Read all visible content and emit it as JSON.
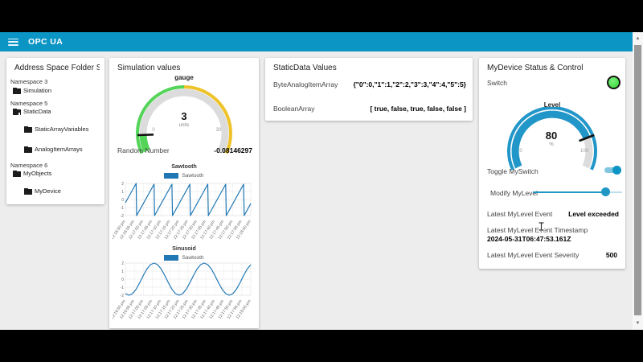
{
  "header": {
    "title": "OPC UA"
  },
  "cards": {
    "address": {
      "title": "Address Space Folder Str...",
      "items": [
        {
          "type": "namespace",
          "label": "Namespace 3"
        },
        {
          "type": "folder",
          "label": "Simulation"
        },
        {
          "type": "namespace",
          "label": "Namespace 5"
        },
        {
          "type": "folder-open",
          "label": "StaticData"
        },
        {
          "type": "folder",
          "label": "StaticArrayVariables"
        },
        {
          "type": "folder",
          "label": "AnalogItemArrays"
        },
        {
          "type": "namespace",
          "label": "Namespace 6"
        },
        {
          "type": "folder",
          "label": "MyObjects"
        },
        {
          "type": "folder",
          "label": "MyDevice"
        }
      ]
    },
    "simulation": {
      "title": "Simulation values",
      "gauge": {
        "title": "gauge",
        "value": "3",
        "units": "units",
        "min": "0",
        "max": "30"
      },
      "random_label": "Random Number",
      "random_value": "-0.08146297"
    },
    "staticdata": {
      "title": "StaticData Values",
      "rows": [
        {
          "label": "ByteAnalogItemArray",
          "value": "{\"0\":0,\"1\":1,\"2\":2,\"3\":3,\"4\":4,\"5\":5}"
        },
        {
          "label": "BooleanArray",
          "value": "[ true, false, true, false, false ]"
        }
      ]
    },
    "mydevice": {
      "title": "MyDevice Status & Control",
      "switch_label": "Switch",
      "gauge": {
        "title": "Level",
        "value": "80",
        "units": "%",
        "min": "0",
        "max": "100"
      },
      "toggle_label": "Toggle MySwitch",
      "slider_label": "Modify MyLevel",
      "slider_percent": 82,
      "event_label": "Latest MyLevel Event",
      "event_value": "Level exceeded",
      "timestamp_label": "Latest MyLevel Event Timestamp",
      "timestamp_value": "2024-05-31T06:47:53.161Z",
      "severity_label": "Latest MyLevel Event Severity",
      "severity_value": "500"
    }
  },
  "chart_data": [
    {
      "type": "line",
      "title": "Sawtooth",
      "legend_position": "top",
      "xlabel": "",
      "ylabel": "",
      "ylim": [
        -2.3,
        2.3
      ],
      "yticks": [
        2,
        1,
        0,
        -1,
        -2
      ],
      "grid": true,
      "x_tick_seconds": [
        0,
        5,
        10,
        15,
        20,
        25,
        30,
        35,
        40,
        45,
        50,
        55,
        60,
        65,
        70
      ],
      "x_tick_labels": [
        "12:16:50 pm",
        "12:16:55 pm",
        "12:17:00 pm",
        "12:17:05 pm",
        "12:17:10 pm",
        "12:17:15 pm",
        "12:17:20 pm",
        "12:17:25 pm",
        "12:17:30 pm",
        "12:17:35 pm",
        "12:17:40 pm",
        "12:17:45 pm",
        "12:17:50 pm",
        "12:17:55 pm",
        "12:18:00 pm"
      ],
      "series": [
        {
          "name": "Sawtooth",
          "color": "#1f77b4",
          "points": [
            [
              0,
              -0.4
            ],
            [
              6,
              2
            ],
            [
              6.3,
              -2
            ],
            [
              16,
              1.9
            ],
            [
              16.3,
              -2
            ],
            [
              26,
              1.9
            ],
            [
              26.3,
              -2
            ],
            [
              36,
              1.9
            ],
            [
              36.3,
              -2
            ],
            [
              46,
              1.9
            ],
            [
              46.3,
              -2
            ],
            [
              56,
              1.9
            ],
            [
              56.3,
              -2
            ],
            [
              66,
              1.9
            ],
            [
              66.3,
              -2
            ],
            [
              70,
              -0.5
            ]
          ]
        }
      ]
    },
    {
      "type": "line",
      "title": "Sinusoid",
      "legend_position": "top",
      "xlabel": "",
      "ylabel": "",
      "ylim": [
        -2.3,
        2.3
      ],
      "yticks": [
        2,
        1,
        0,
        -1,
        -2
      ],
      "grid": true,
      "x_tick_seconds": [
        0,
        5,
        10,
        15,
        20,
        25,
        30,
        35,
        40,
        45,
        50,
        55,
        60,
        65,
        70
      ],
      "x_tick_labels": [
        "12:16:50 pm",
        "12:16:55 pm",
        "12:17:00 pm",
        "12:17:05 pm",
        "12:17:10 pm",
        "12:17:15 pm",
        "12:17:20 pm",
        "12:17:25 pm",
        "12:17:30 pm",
        "12:17:35 pm",
        "12:17:40 pm",
        "12:17:45 pm",
        "12:17:50 pm",
        "12:17:55 pm",
        "12:18:00 pm"
      ],
      "series": [
        {
          "name": "Sawtooth",
          "color": "#1f77b4",
          "points": [
            [
              0,
              -1.8
            ],
            [
              2,
              -2
            ],
            [
              4,
              -1.8
            ],
            [
              6,
              -1.25
            ],
            [
              8,
              -0.45
            ],
            [
              10,
              0.45
            ],
            [
              12,
              1.25
            ],
            [
              14,
              1.8
            ],
            [
              16,
              2
            ],
            [
              18,
              1.8
            ],
            [
              20,
              1.25
            ],
            [
              22,
              0.45
            ],
            [
              24,
              -0.45
            ],
            [
              26,
              -1.25
            ],
            [
              28,
              -1.8
            ],
            [
              30,
              -2
            ],
            [
              32,
              -1.8
            ],
            [
              34,
              -1.25
            ],
            [
              36,
              -0.45
            ],
            [
              38,
              0.45
            ],
            [
              40,
              1.25
            ],
            [
              42,
              1.8
            ],
            [
              44,
              2
            ],
            [
              46,
              1.8
            ],
            [
              48,
              1.25
            ],
            [
              50,
              0.45
            ],
            [
              52,
              -0.45
            ],
            [
              54,
              -1.25
            ],
            [
              56,
              -1.8
            ],
            [
              58,
              -2
            ],
            [
              60,
              -1.8
            ],
            [
              62,
              -1.25
            ],
            [
              64,
              -0.45
            ],
            [
              66,
              0.45
            ],
            [
              68,
              1.25
            ],
            [
              70,
              1.8
            ]
          ]
        }
      ]
    }
  ],
  "colors": {
    "accent": "#0b95c5",
    "chart_line": "#1f77b4",
    "gauge_green": "#55d45a",
    "gauge_yellow": "#eec32a",
    "gauge_blue": "#2196c9",
    "gauge_track": "#dcdcdc",
    "led_green": "#3fdc3f"
  }
}
